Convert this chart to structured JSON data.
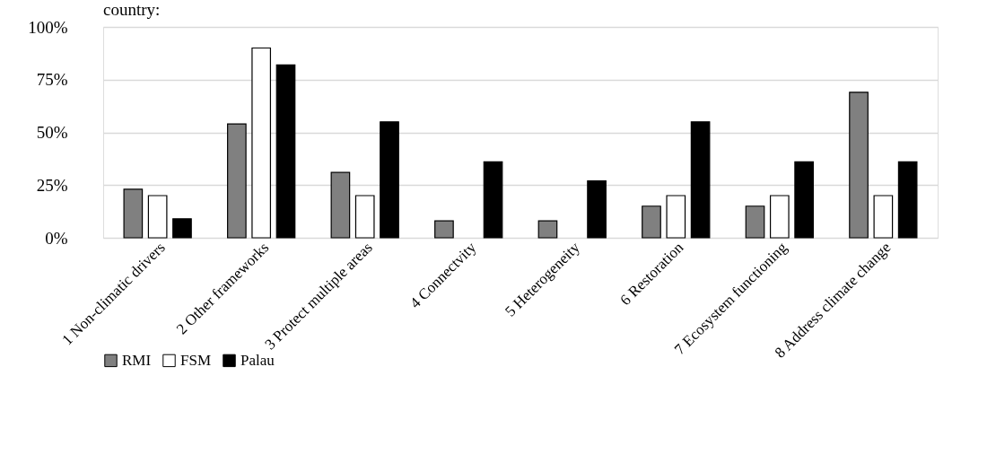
{
  "chart_data": {
    "type": "bar",
    "title": "country:",
    "categories": [
      "1 Non-climatic drivers",
      "2 Other frameworks",
      "3 Protect multiple areas",
      "4 Connectvity",
      "5 Heterogeneity",
      "6 Restoration",
      "7 Ecosystem functioning",
      "8 Address climate change"
    ],
    "series": [
      {
        "name": "RMI",
        "color": "#808080",
        "values": [
          23,
          54,
          31,
          8,
          8,
          15,
          15,
          69
        ]
      },
      {
        "name": "FSM",
        "color": "#ffffff",
        "values": [
          20,
          90,
          20,
          0,
          0,
          20,
          20,
          20
        ]
      },
      {
        "name": "Palau",
        "color": "#000000",
        "values": [
          9,
          82,
          55,
          36,
          27,
          55,
          36,
          36
        ]
      }
    ],
    "ylim": [
      0,
      100
    ],
    "yticks": [
      {
        "value": 0,
        "label": "0%"
      },
      {
        "value": 25,
        "label": "25%"
      },
      {
        "value": 50,
        "label": "50%"
      },
      {
        "value": 75,
        "label": "75%"
      },
      {
        "value": 100,
        "label": "100%"
      }
    ],
    "grid": "y",
    "legend": "bottom"
  }
}
